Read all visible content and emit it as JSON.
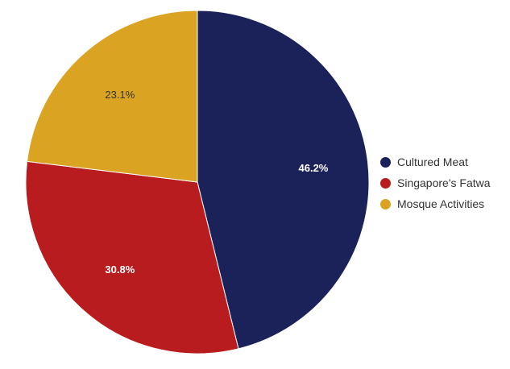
{
  "chart_data": {
    "type": "pie",
    "title": "",
    "slices": [
      {
        "label": "Cultured Meat",
        "value": 46.2,
        "display": "46.2%",
        "color": "#1b2259",
        "label_color": "#ffffff",
        "label_weight": "bold"
      },
      {
        "label": "Singapore's Fatwa",
        "value": 30.8,
        "display": "30.8%",
        "color": "#b81c1e",
        "label_color": "#ffffff",
        "label_weight": "bold"
      },
      {
        "label": "Mosque Activities",
        "value": 23.1,
        "display": "23.1%",
        "color": "#daa322",
        "label_color": "#333333",
        "label_weight": "normal"
      }
    ],
    "start_angle": "12 o'clock",
    "direction": "clockwise",
    "legend_position": "right"
  }
}
